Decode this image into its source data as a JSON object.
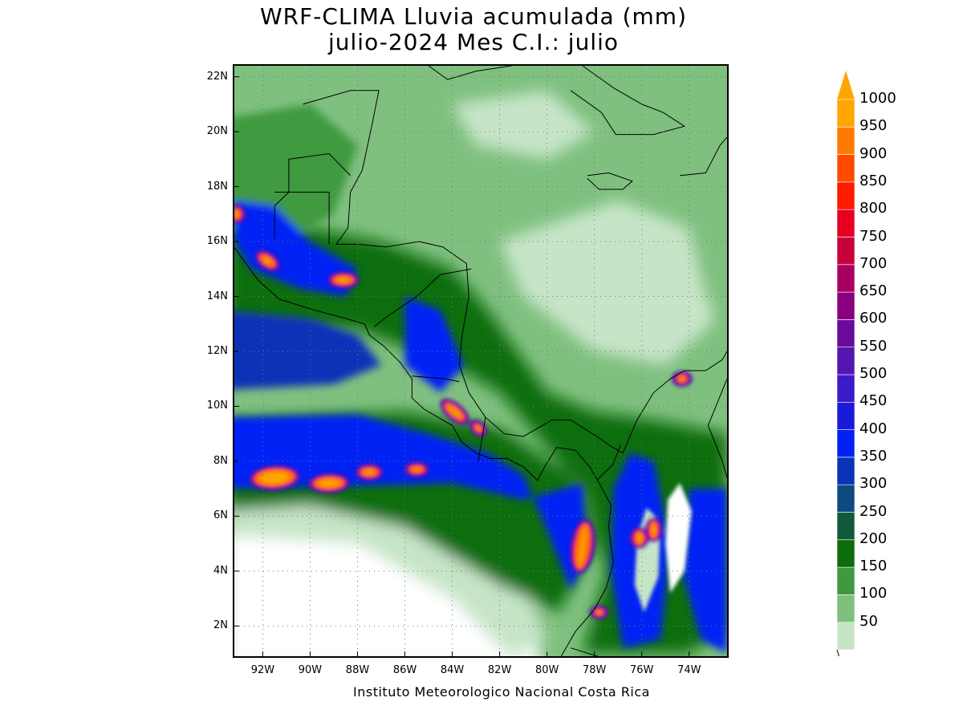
{
  "title": {
    "line1": "WRF-CLIMA Lluvia acumulada (mm)",
    "line2": "julio-2024 Mes C.I.: julio"
  },
  "credit": "Instituto Meteorologico Nacional Costa Rica",
  "map": {
    "lon_range": [
      -93.2,
      -72.4
    ],
    "lat_range": [
      0.9,
      22.4
    ],
    "lat_ticks": [
      {
        "value": 22,
        "label": "22N"
      },
      {
        "value": 20,
        "label": "20N"
      },
      {
        "value": 18,
        "label": "18N"
      },
      {
        "value": 16,
        "label": "16N"
      },
      {
        "value": 14,
        "label": "14N"
      },
      {
        "value": 12,
        "label": "12N"
      },
      {
        "value": 10,
        "label": "10N"
      },
      {
        "value": 8,
        "label": "8N"
      },
      {
        "value": 6,
        "label": "6N"
      },
      {
        "value": 4,
        "label": "4N"
      },
      {
        "value": 2,
        "label": "2N"
      }
    ],
    "lon_ticks": [
      {
        "value": -92,
        "label": "92W"
      },
      {
        "value": -90,
        "label": "90W"
      },
      {
        "value": -88,
        "label": "88W"
      },
      {
        "value": -86,
        "label": "86W"
      },
      {
        "value": -84,
        "label": "84W"
      },
      {
        "value": -82,
        "label": "82W"
      },
      {
        "value": -80,
        "label": "80W"
      },
      {
        "value": -78,
        "label": "78W"
      },
      {
        "value": -76,
        "label": "76W"
      },
      {
        "value": -74,
        "label": "74W"
      }
    ],
    "grid": true
  },
  "colorbar": {
    "levels": [
      "50",
      "100",
      "150",
      "200",
      "250",
      "300",
      "350",
      "400",
      "450",
      "500",
      "550",
      "600",
      "650",
      "700",
      "750",
      "800",
      "850",
      "900",
      "950",
      "1000"
    ],
    "colors": [
      "#c6e5c7",
      "#7fc07f",
      "#3f9a3f",
      "#0b6e0b",
      "#105a3b",
      "#0d4a80",
      "#0a33b8",
      "#0022f5",
      "#1a1ad9",
      "#3b1ac8",
      "#5515b0",
      "#6a0a9a",
      "#8a0080",
      "#a80060",
      "#c8003c",
      "#e60020",
      "#ff1a00",
      "#ff4a00",
      "#ff7a00",
      "#ffa500"
    ]
  }
}
